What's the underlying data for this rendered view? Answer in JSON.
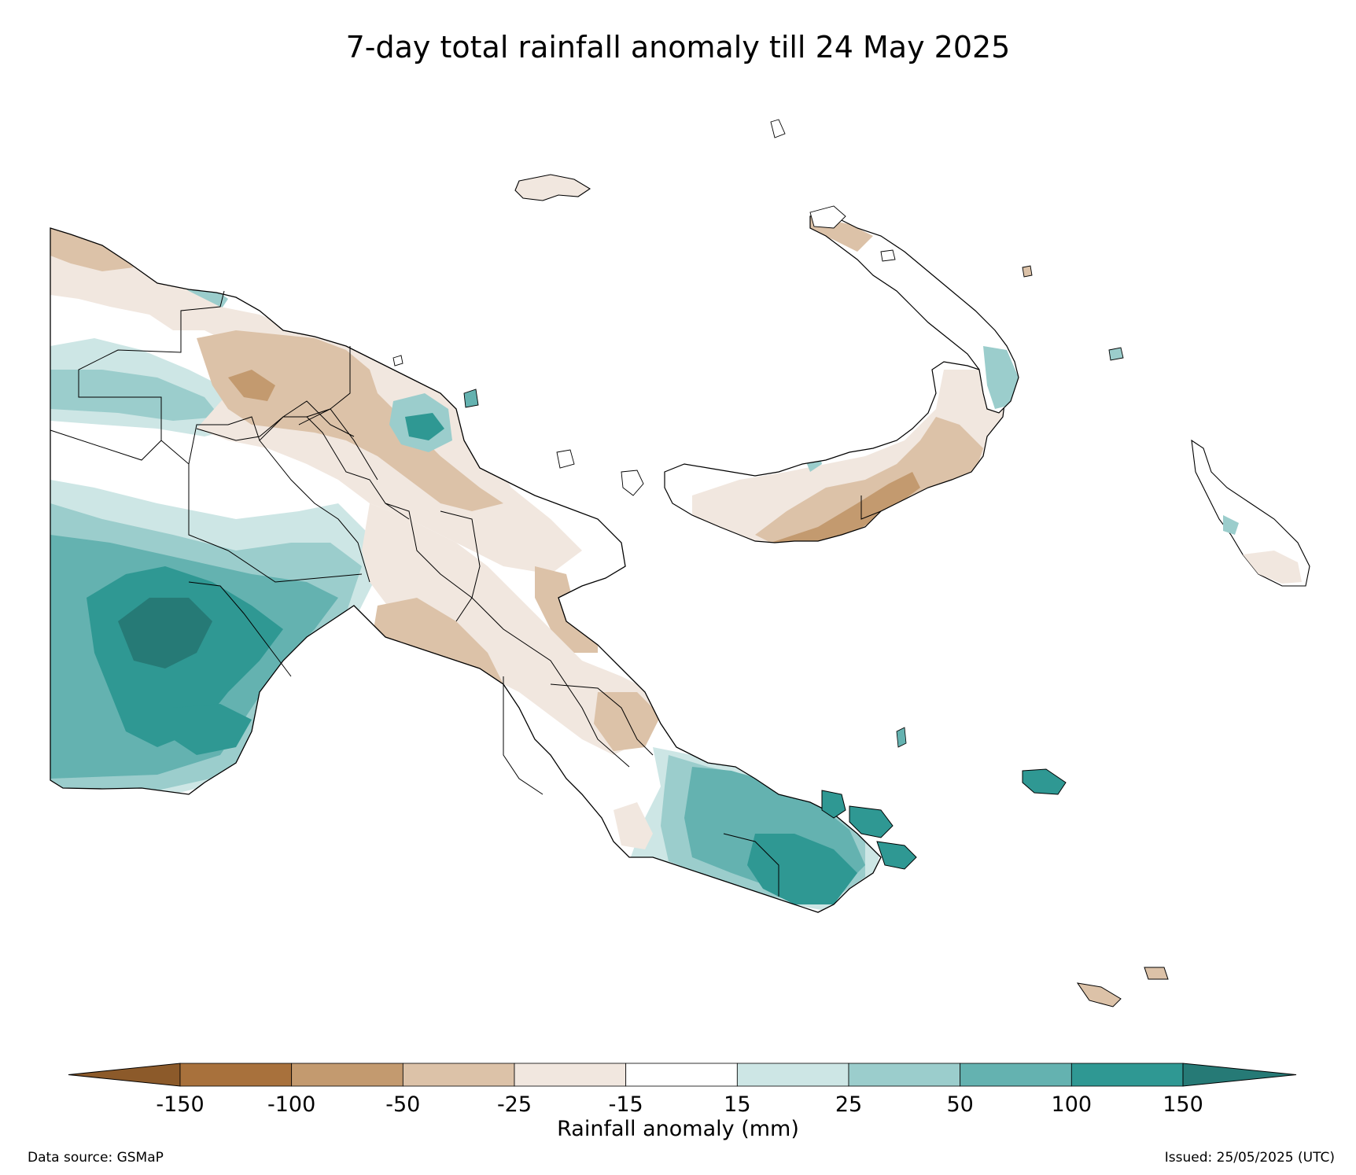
{
  "title": "7-day total rainfall anomaly till 24 May 2025",
  "colorbar": {
    "label": "Rainfall anomaly (mm)",
    "ticks": [
      "-150",
      "-100",
      "-50",
      "-25",
      "-15",
      "15",
      "25",
      "50",
      "100",
      "150"
    ],
    "colors": [
      "#8c5a2a",
      "#a8713c",
      "#c39a6f",
      "#dcc2a8",
      "#f1e7df",
      "#ffffff",
      "#cde6e5",
      "#9bcdcc",
      "#64b2b0",
      "#2f9893",
      "#267a76"
    ]
  },
  "footer": {
    "source": "Data source: GSMaP",
    "issued": "Issued: 25/05/2025 (UTC)"
  },
  "colors": {
    "boundary": "#000000",
    "dry_strong": "#c39a6f",
    "dry_moderate": "#dcc2a8",
    "dry_light": "#f1e7df",
    "wet_light": "#cde6e5",
    "wet_moderate": "#9bcdcc",
    "wet": "#64b2b0",
    "wet_strong": "#2f9893",
    "wet_extreme": "#267a76"
  }
}
